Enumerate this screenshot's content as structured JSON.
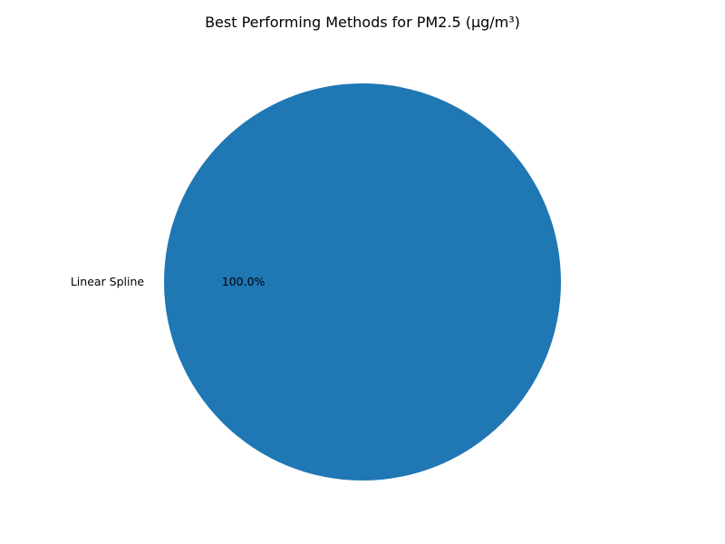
{
  "chart_data": {
    "type": "pie",
    "title": "Best Performing Methods for PM2.5 (µg/m³)",
    "slices": [
      {
        "label": "Linear Spline",
        "value": 1,
        "percent_label": "100.0%",
        "color": "#1f77b4"
      }
    ]
  }
}
